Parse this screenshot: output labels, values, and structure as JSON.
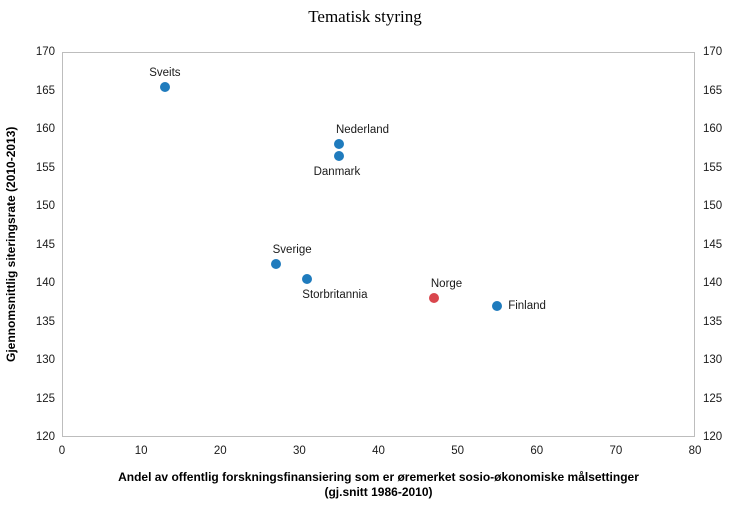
{
  "chart_data": {
    "type": "scatter",
    "title": "Tematisk styring",
    "xlabel_line1": "Andel av offentlig forskningsfinansiering som er øremerket sosio-økonomiske målsettinger",
    "xlabel_line2": "(gj.snitt 1986-2010)",
    "ylabel": "Gjennomsnittlig siteringsrate (2010-2013)",
    "xlim": [
      0,
      80
    ],
    "ylim": [
      120,
      170
    ],
    "xticks": [
      0,
      10,
      20,
      30,
      40,
      50,
      60,
      70,
      80
    ],
    "yticks": [
      170,
      165,
      160,
      155,
      150,
      145,
      140,
      135,
      130,
      125,
      120
    ],
    "grid": false,
    "legend": "none",
    "y_axis_mirrored_right": true,
    "colors": {
      "blue": "#1f7bbd",
      "red": "#d9464d",
      "axis_border": "#bdbdbd",
      "text": "#000000"
    },
    "points": [
      {
        "label": "Sveits",
        "x": 13,
        "y": 165.5,
        "color": "blue",
        "label_pos": "above"
      },
      {
        "label": "Nederland",
        "x": 35,
        "y": 158,
        "color": "blue",
        "label_pos": "above-right"
      },
      {
        "label": "Danmark",
        "x": 35,
        "y": 156.5,
        "color": "blue",
        "label_pos": "below"
      },
      {
        "label": "Sverige",
        "x": 27,
        "y": 142.5,
        "color": "blue",
        "label_pos": "above-right"
      },
      {
        "label": "Storbritannia",
        "x": 31,
        "y": 140.5,
        "color": "blue",
        "label_pos": "below-right"
      },
      {
        "label": "Norge",
        "x": 47,
        "y": 138,
        "color": "red",
        "label_pos": "above-right"
      },
      {
        "label": "Finland",
        "x": 55,
        "y": 137,
        "color": "blue",
        "label_pos": "right"
      }
    ]
  }
}
